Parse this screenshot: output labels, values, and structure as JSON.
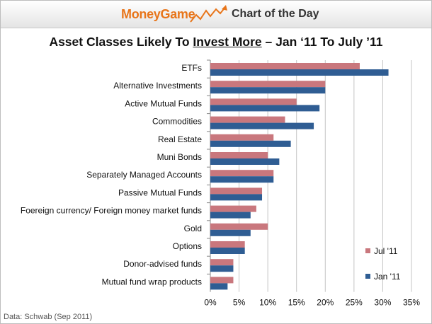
{
  "header": {
    "brand": "MoneyGame",
    "tagline": "Chart of the Day"
  },
  "source": "Data: Schwab (Sep 2011)",
  "chart_data": {
    "type": "bar",
    "orientation": "horizontal",
    "title_pre": "Asset Classes Likely To ",
    "title_underlined": "Invest More",
    "title_post": " – Jan ‘11 To July ’11",
    "categories": [
      "ETFs",
      "Alternative Investments",
      "Active Mutual Funds",
      "Commodities",
      "Real Estate",
      "Muni Bonds",
      "Separately Managed Accounts",
      "Passive Mutual Funds",
      "Foereign currency/ Foreign money market funds",
      "Gold",
      "Options",
      "Donor-advised funds",
      "Mutual fund wrap products"
    ],
    "series": [
      {
        "name": "Jul '11",
        "color": "#c9777d",
        "values": [
          26,
          20,
          15,
          13,
          11,
          10,
          11,
          9,
          8,
          10,
          6,
          4,
          4
        ]
      },
      {
        "name": "Jan '11",
        "color": "#2f5d93",
        "values": [
          31,
          20,
          19,
          18,
          14,
          12,
          11,
          9,
          7,
          7,
          6,
          4,
          3
        ]
      }
    ],
    "xlim": [
      0,
      35
    ],
    "xticks": [
      "0%",
      "5%",
      "10%",
      "15%",
      "20%",
      "25%",
      "30%",
      "35%"
    ],
    "grid": true,
    "legend_position": "bottom-right"
  }
}
